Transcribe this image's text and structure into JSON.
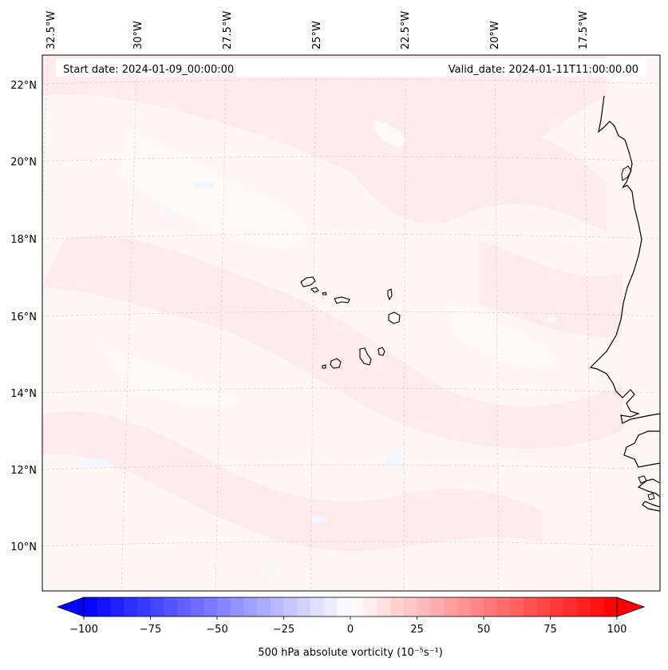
{
  "header": {
    "start_date": "Start date: 2024-01-09_00:00:00",
    "valid_date": "Valid_date: 2024-01-11T11:00:00.00"
  },
  "lon_labels": [
    "32.5°W",
    "30°W",
    "27.5°W",
    "25°W",
    "22.5°W",
    "20°W",
    "17.5°W"
  ],
  "lat_labels": [
    "22°N",
    "20°N",
    "18°N",
    "16°N",
    "14°N",
    "12°N",
    "10°N"
  ],
  "colorbar": {
    "ticks": [
      "−100",
      "−75",
      "−50",
      "−25",
      "0",
      "25",
      "50",
      "75",
      "100"
    ],
    "label": "500 hPa absolute vorticity (10⁻⁵s⁻¹)",
    "min": -100,
    "max": 100,
    "levels": 40,
    "colormap": "bwr"
  },
  "colors": {
    "background_field": "#fff6f6",
    "positive_patch": "#ffe9e9",
    "negative_patch": "#f2f6ff",
    "coastline": "#000000",
    "gridline": "#bbbbbb"
  }
}
